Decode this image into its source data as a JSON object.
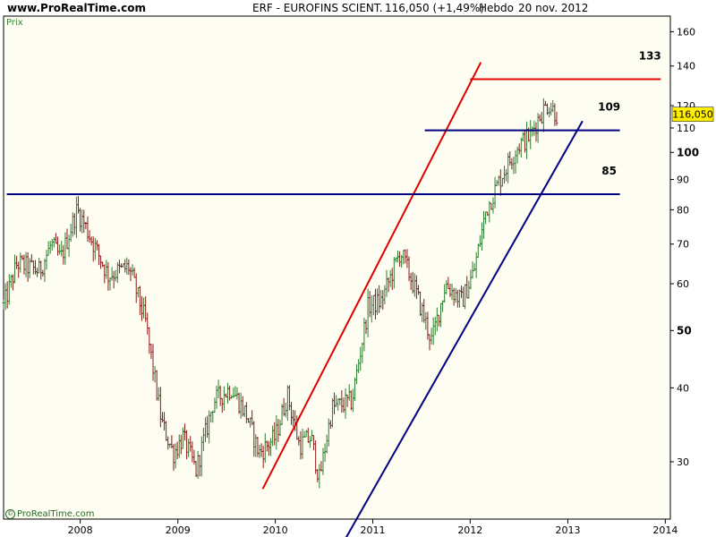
{
  "header": {
    "site": "www.ProRealTime.com",
    "ticker": "ERF - EUROFINS SCIENT.",
    "price": "116,050 (+1,49%)",
    "period": "Hebdo",
    "date": "20 nov. 2012"
  },
  "copyright": "ProRealTime.com",
  "colors": {
    "background": "#fdfdf2",
    "up_bar": "#2e7d32",
    "down_bar": "#8b1a1a",
    "support_line": "#000080",
    "resistance_line": "#e00000",
    "price_tag_bg": "#ffee00"
  },
  "chart_data": {
    "type": "ohlc",
    "title": "ERF - EUROFINS SCIENT.",
    "ylabel": "Prix",
    "y_scale": "log",
    "ylim": [
      24,
      170
    ],
    "xlim": [
      "2007-03-20",
      "2014-01-20"
    ],
    "x_tick_labels": [
      "2008",
      "2009",
      "2010",
      "2011",
      "2012",
      "2013",
      "2014"
    ],
    "y_tick_labels": [
      "160",
      "140",
      "120",
      "110",
      "100",
      "90",
      "80",
      "70",
      "60",
      "50",
      "40",
      "30"
    ],
    "last_price_tag": "116,050",
    "price_path": [
      [
        "2007-03-20",
        55
      ],
      [
        "2007-05-10",
        65
      ],
      [
        "2007-08-01",
        63
      ],
      [
        "2007-09-15",
        70
      ],
      [
        "2007-10-20",
        66
      ],
      [
        "2007-12-20",
        80
      ],
      [
        "2008-01-15",
        76
      ],
      [
        "2008-02-20",
        70
      ],
      [
        "2008-04-15",
        62
      ],
      [
        "2008-07-01",
        64
      ],
      [
        "2008-09-01",
        52
      ],
      [
        "2008-11-01",
        35
      ],
      [
        "2008-12-15",
        31
      ],
      [
        "2009-01-20",
        33
      ],
      [
        "2009-03-10",
        29
      ],
      [
        "2009-05-15",
        38
      ],
      [
        "2009-07-20",
        40
      ],
      [
        "2009-09-15",
        36
      ],
      [
        "2009-11-01",
        31
      ],
      [
        "2010-01-01",
        33
      ],
      [
        "2010-02-15",
        39
      ],
      [
        "2010-04-01",
        32
      ],
      [
        "2010-05-15",
        33
      ],
      [
        "2010-06-15",
        28
      ],
      [
        "2010-08-01",
        37
      ],
      [
        "2010-10-15",
        38
      ],
      [
        "2010-12-15",
        55
      ],
      [
        "2011-02-01",
        56
      ],
      [
        "2011-04-15",
        68
      ],
      [
        "2011-06-01",
        60
      ],
      [
        "2011-08-10",
        48
      ],
      [
        "2011-10-01",
        60
      ],
      [
        "2011-12-01",
        56
      ],
      [
        "2012-01-15",
        63
      ],
      [
        "2012-03-01",
        80
      ],
      [
        "2012-05-01",
        92
      ],
      [
        "2012-07-01",
        103
      ],
      [
        "2012-08-15",
        107
      ],
      [
        "2012-09-15",
        115
      ],
      [
        "2012-10-20",
        121
      ],
      [
        "2012-11-20",
        116
      ]
    ],
    "trendlines": [
      {
        "kind": "channel-upper",
        "color": "#e00000",
        "from": [
          "2009-11-15",
          27
        ],
        "to": [
          "2012-02-10",
          142
        ]
      },
      {
        "kind": "channel-lower",
        "color": "#000080",
        "from": [
          "2010-09-15",
          22
        ],
        "to": [
          "2013-02-25",
          113
        ]
      }
    ],
    "horizontal_levels": [
      {
        "value": 133,
        "label": "133",
        "color": "#e00000",
        "x_from": "2012-01-01",
        "x_to": "2013-12-15"
      },
      {
        "value": 109,
        "label": "109",
        "color": "#000080",
        "x_from": "2011-07-15",
        "x_to": "2013-07-15"
      },
      {
        "value": 85,
        "label": "85",
        "color": "#000080",
        "x_from": "2007-04-01",
        "x_to": "2013-07-15"
      }
    ]
  }
}
